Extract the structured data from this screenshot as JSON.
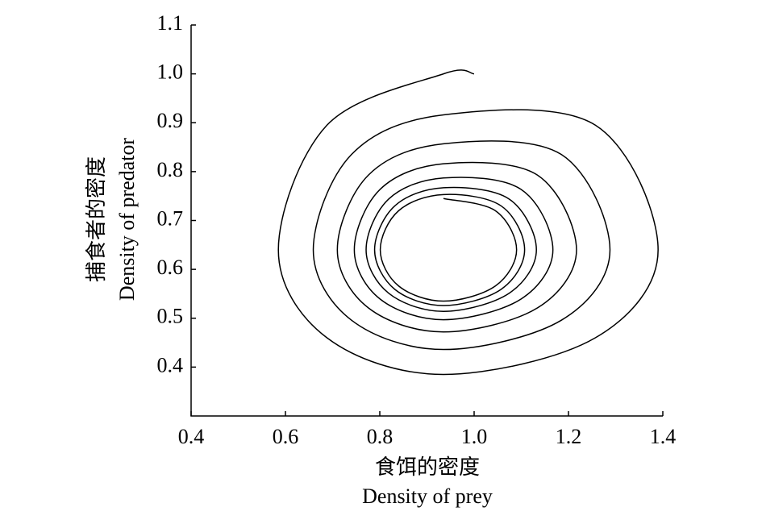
{
  "chart_data": {
    "type": "line",
    "xlabel": [
      "食饵的密度",
      "Density of prey"
    ],
    "ylabel": [
      "捕食者的密度",
      "Density of predator"
    ],
    "xlim": [
      0.4,
      1.4
    ],
    "xticks": [
      0.4,
      0.6,
      0.8,
      {
        "value": 1,
        "label": "1.0"
      },
      1.2,
      1.4
    ],
    "ylim": [
      0.3,
      1.1
    ],
    "yticks": [
      0.4,
      0.5,
      0.6,
      0.7,
      0.8,
      0.9,
      {
        "value": 1,
        "label": "1.0"
      },
      1.1
    ],
    "series": [
      {
        "color": "#000000",
        "x": [
          1.0,
          0.935,
          0.688,
          0.585,
          0.688,
          0.935,
          1.257,
          1.39,
          1.257,
          0.935,
          0.74,
          0.659,
          0.74,
          0.935,
          1.185,
          1.288,
          1.185,
          0.935,
          0.776,
          0.71,
          0.776,
          0.935,
          1.134,
          1.217,
          1.134,
          0.935,
          0.801,
          0.746,
          0.801,
          0.935,
          1.099,
          1.167,
          1.099,
          0.935,
          0.819,
          0.771,
          0.819,
          0.935,
          1.074,
          1.132,
          1.074,
          0.935,
          0.832,
          0.789,
          0.832,
          0.935,
          1.057,
          1.107,
          1.057,
          0.935,
          0.84,
          0.801,
          0.84,
          0.935,
          1.045,
          1.09,
          1.045,
          0.935
        ],
        "values": [
          1.0,
          1.0,
          0.895,
          0.64,
          0.46,
          0.385,
          0.46,
          0.64,
          0.895,
          0.916,
          0.835,
          0.64,
          0.496,
          0.436,
          0.496,
          0.64,
          0.835,
          0.857,
          0.793,
          0.64,
          0.521,
          0.472,
          0.521,
          0.64,
          0.793,
          0.816,
          0.764,
          0.64,
          0.539,
          0.497,
          0.539,
          0.64,
          0.764,
          0.787,
          0.744,
          0.64,
          0.551,
          0.514,
          0.551,
          0.64,
          0.744,
          0.767,
          0.73,
          0.64,
          0.559,
          0.526,
          0.559,
          0.64,
          0.73,
          0.753,
          0.72,
          0.64,
          0.566,
          0.535,
          0.566,
          0.64,
          0.72,
          0.745
        ]
      }
    ]
  }
}
